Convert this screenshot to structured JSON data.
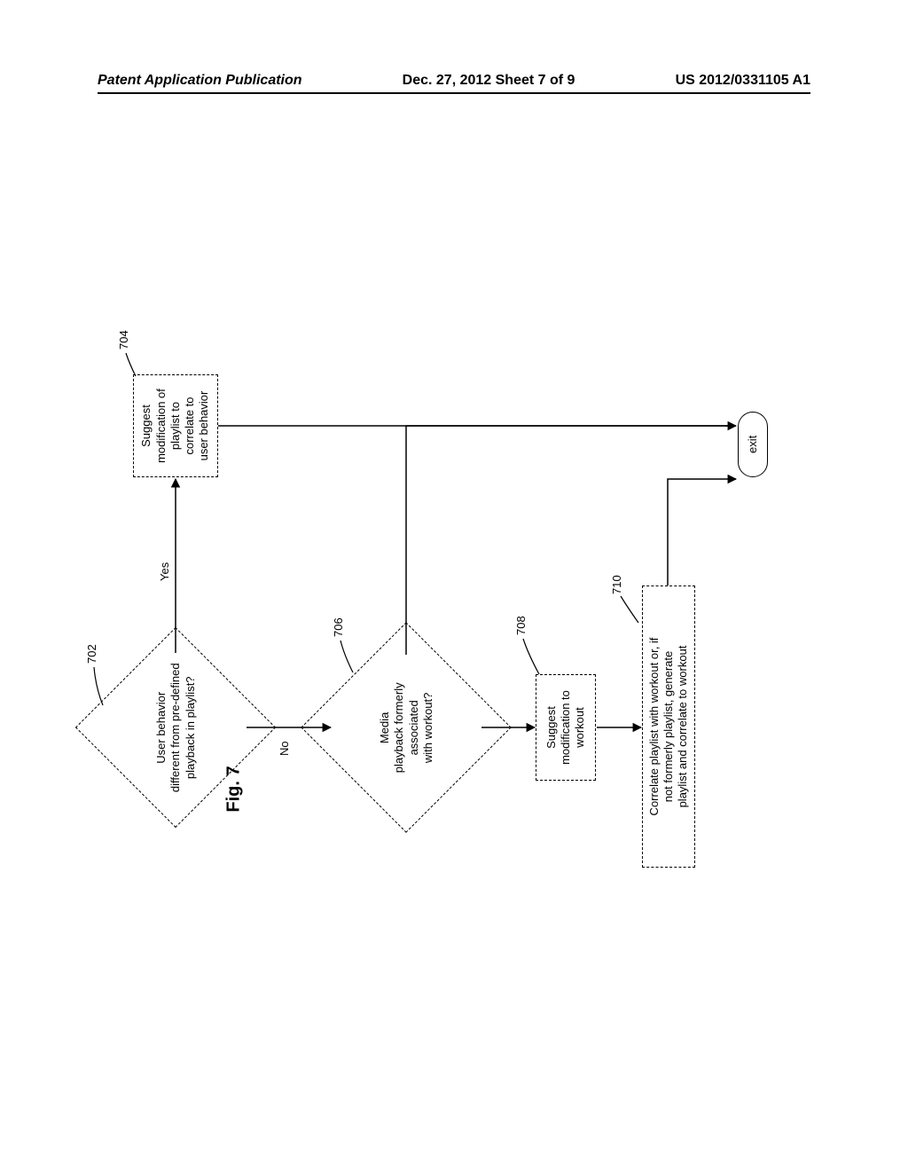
{
  "header": {
    "left": "Patent Application Publication",
    "center": "Dec. 27, 2012  Sheet 7 of 9",
    "right": "US 2012/0331105 A1"
  },
  "figure_label": "Fig. 7",
  "nodes": {
    "d702": {
      "ref": "702",
      "text": "User behavior\ndifferent from pre-defined\nplayback in playlist?",
      "type": "diamond"
    },
    "r704": {
      "ref": "704",
      "text": "Suggest\nmodification of\nplaylist to\ncorrelate to\nuser behavior",
      "type": "rect"
    },
    "d706": {
      "ref": "706",
      "text": "Media\nplayback formerly\nassociated\nwith workout?",
      "type": "diamond"
    },
    "r708": {
      "ref": "708",
      "text": "Suggest\nmodification to\nworkout",
      "type": "rect"
    },
    "r710": {
      "ref": "710",
      "text": "Correlate playlist with workout or, if\nnot formerly playlist, generate\nplaylist and correlate to workout",
      "type": "rect"
    },
    "exit": {
      "text": "exit",
      "type": "terminal"
    }
  },
  "edges": {
    "e702_704": {
      "label": "Yes"
    },
    "e702_706": {
      "label": "No"
    }
  },
  "style": {
    "stroke": "#000000",
    "stroke_width": 1.5,
    "dash": "4 3",
    "font_size": 13,
    "bg": "#ffffff"
  }
}
